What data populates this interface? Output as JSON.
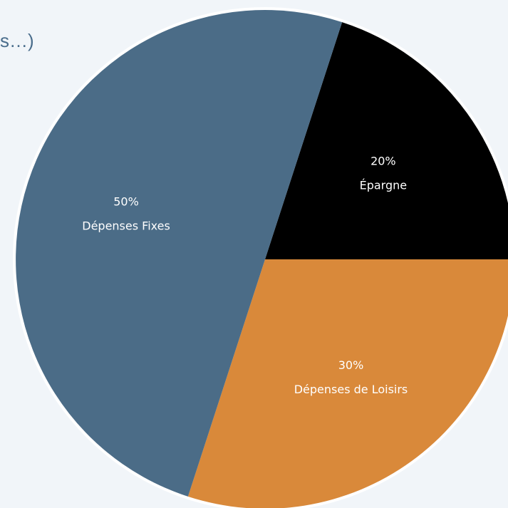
{
  "caption": "s…)",
  "chart_data": {
    "type": "pie",
    "title": "",
    "slices": [
      {
        "label": "Épargne",
        "pct_label": "20%",
        "value": 20,
        "color": "#000000"
      },
      {
        "label": "Dépenses de Loisirs",
        "pct_label": "30%",
        "value": 30,
        "color": "#d9893a"
      },
      {
        "label": "Dépenses Fixes",
        "pct_label": "50%",
        "value": 50,
        "color": "#4b6c87"
      }
    ],
    "start_angle_deg": -72,
    "direction": "clockwise",
    "legend": "none",
    "labels": "inside"
  }
}
